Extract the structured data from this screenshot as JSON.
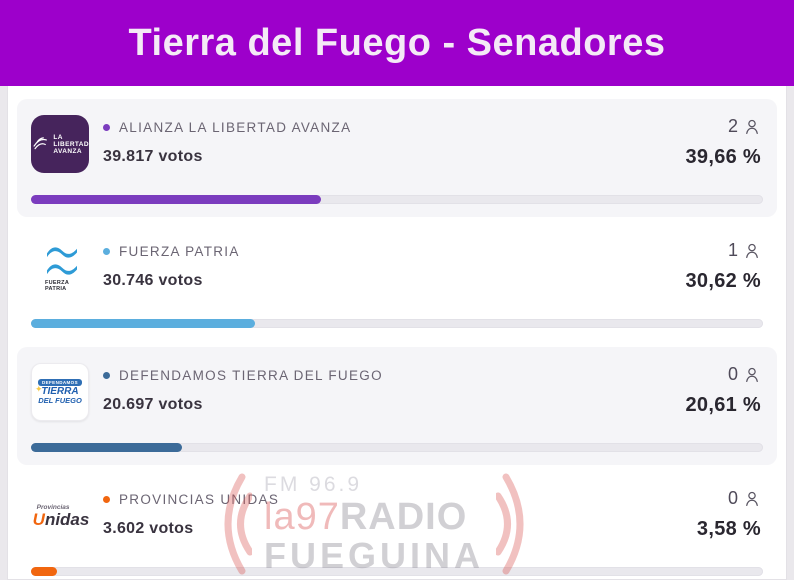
{
  "header": {
    "title": "Tierra del Fuego - Senadores",
    "bg_color": "#9D00CB",
    "text_color": "#F4EAF6"
  },
  "results": {
    "rows": [
      {
        "party": "ALIANZA LA LIBERTAD AVANZA",
        "votes_label": "39.817 votos",
        "seats": "2",
        "percent_label": "39,66 %",
        "percent_value": 39.66,
        "color": "#7B3CBE",
        "card": true,
        "logo": {
          "type": "lla",
          "bg": "#46245C",
          "lines": [
            "LA",
            "LIBERTAD",
            "AVANZA"
          ]
        }
      },
      {
        "party": "FUERZA PATRIA",
        "votes_label": "30.746 votos",
        "seats": "1",
        "percent_label": "30,62 %",
        "percent_value": 30.62,
        "color": "#5BAEDE",
        "card": false,
        "logo": {
          "type": "fp",
          "flag_color": "#2E9BD6",
          "lines": [
            "FUERZA",
            "PATRIA"
          ]
        }
      },
      {
        "party": "DEFENDAMOS TIERRA DEL FUEGO",
        "votes_label": "20.697 votos",
        "seats": "0",
        "percent_label": "20,61 %",
        "percent_value": 20.61,
        "color": "#3C6B99",
        "card": true,
        "logo": {
          "type": "dtf",
          "badge": "DEFENDAMOS",
          "lines": [
            "TIERRA",
            "DEL FUEGO"
          ],
          "star": "✦"
        }
      },
      {
        "party": "PROVINCIAS UNIDAS",
        "votes_label": "3.602 votos",
        "seats": "0",
        "percent_label": "3,58 %",
        "percent_value": 3.58,
        "color": "#F1660F",
        "card": false,
        "logo": {
          "type": "pu",
          "lines": [
            "Provincias",
            "Unidas"
          ],
          "accent": "#F1660F"
        }
      }
    ]
  },
  "watermark": {
    "fm": "FM 96.9",
    "brand_red": "la97",
    "brand_gray": "RADIO",
    "line2": "FUEGUINA"
  }
}
